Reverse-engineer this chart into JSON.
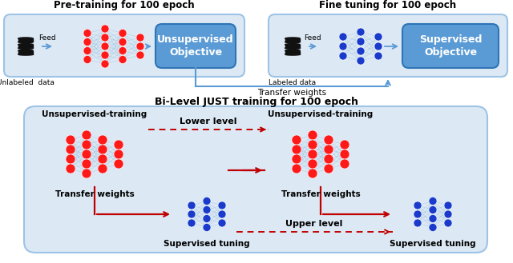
{
  "bg_color": "#ffffff",
  "title_top_left": "Pre-training for 100 epoch",
  "title_top_right": "Fine tuning for 100 epoch",
  "title_bottom": "Bi-Level JUST training for 100 epoch",
  "transfer_weights_label": "Transfer weights",
  "lower_level_label": "Lower level",
  "upper_level_label": "Upper level",
  "node_color_red": "#ff1a1a",
  "node_color_blue": "#1a3acc",
  "box_fill_blue": "#5b9bd5",
  "box_edge_blue": "#2e75b6",
  "box_fill_light": "#dce9f5",
  "box_edge_light": "#9dc3e6",
  "arrow_blue": "#5b9bd5",
  "arrow_red": "#c00000",
  "dashed_red": "#c00000",
  "db_color": "#111111",
  "line_color_nn": "#8ab4d4"
}
